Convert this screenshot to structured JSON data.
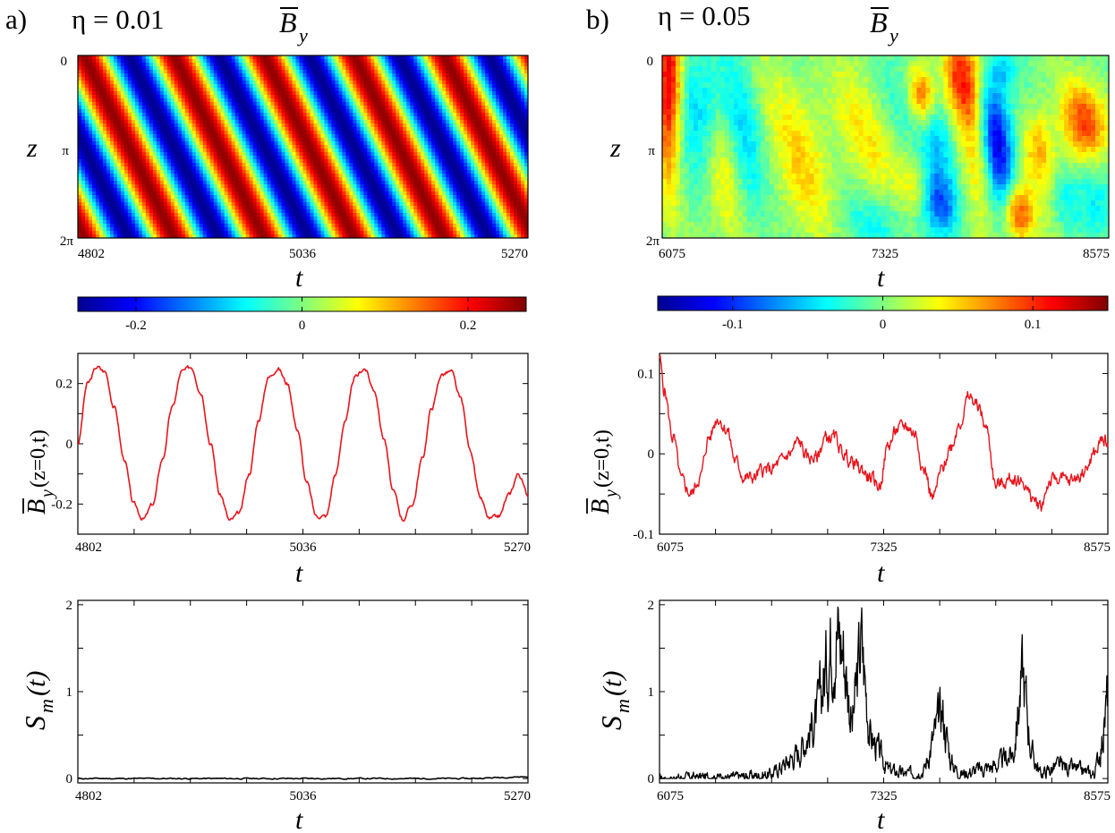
{
  "panels": [
    {
      "id": "a",
      "panel_label": "a)",
      "eta_label": "η = 0.01",
      "heatmap_title": "B̄y",
      "title_base": "B",
      "title_sub": "y",
      "tmin": 4802,
      "tmax": 5270,
      "t_ticks": [
        "4802",
        "5036",
        "5270"
      ],
      "heatmap": {
        "ylabel": "z",
        "z_ticks": [
          "0",
          "π",
          "2π"
        ],
        "xlabel": "t",
        "colorbar": {
          "vmin": -0.27,
          "vmax": 0.27,
          "ticks": [
            -0.2,
            0,
            0.2
          ],
          "tick_labels": [
            "-0.2",
            "0",
            "0.2"
          ]
        }
      },
      "by_series": {
        "ylabel": "B̄y(z=0,t)",
        "ylabel_base": "B",
        "ylabel_sub": "y",
        "ylabel_rest": "(z=0,t)",
        "xlabel": "t",
        "ylim": [
          -0.3,
          0.3
        ],
        "y_ticks": [
          -0.2,
          0,
          0.2
        ],
        "y_tick_labels": [
          "-0.2",
          "0",
          "0.2"
        ],
        "color": "#e8141c"
      },
      "sm_series": {
        "ylabel": "Sm(t)",
        "ylabel_base": "S",
        "ylabel_sub": "m",
        "ylabel_rest": "(t)",
        "xlabel": "t",
        "ylim": [
          -0.05,
          2.05
        ],
        "y_ticks": [
          0,
          1,
          2
        ],
        "y_tick_labels": [
          "0",
          "1",
          "2"
        ],
        "color": "#000000"
      }
    },
    {
      "id": "b",
      "panel_label": "b)",
      "eta_label": "η = 0.05",
      "heatmap_title": "B̄y",
      "title_base": "B",
      "title_sub": "y",
      "tmin": 6075,
      "tmax": 8575,
      "t_ticks": [
        "6075",
        "7325",
        "8575"
      ],
      "heatmap": {
        "ylabel": "z",
        "z_ticks": [
          "0",
          "π",
          "2π"
        ],
        "xlabel": "t",
        "colorbar": {
          "vmin": -0.15,
          "vmax": 0.15,
          "ticks": [
            -0.1,
            0,
            0.1
          ],
          "tick_labels": [
            "-0.1",
            "0",
            "0.1"
          ]
        }
      },
      "by_series": {
        "ylabel": "B̄y(z=0,t)",
        "ylabel_base": "B",
        "ylabel_sub": "y",
        "ylabel_rest": "(z=0,t)",
        "xlabel": "t",
        "ylim": [
          -0.1,
          0.125
        ],
        "y_ticks": [
          -0.1,
          0,
          0.1
        ],
        "y_tick_labels": [
          "-0.1",
          "0",
          "0.1"
        ],
        "color": "#e8141c"
      },
      "sm_series": {
        "ylabel": "Sm(t)",
        "ylabel_base": "S",
        "ylabel_sub": "m",
        "ylabel_rest": "(t)",
        "xlabel": "t",
        "ylim": [
          -0.05,
          2.05
        ],
        "y_ticks": [
          0,
          1,
          2
        ],
        "y_tick_labels": [
          "0",
          "1",
          "2"
        ],
        "color": "#000000"
      }
    }
  ],
  "chart_data": [
    {
      "type": "heatmap",
      "panel": "a",
      "title": "B̄y",
      "xlabel": "t",
      "ylabel": "z",
      "x_range": [
        4802,
        5270
      ],
      "y_range": [
        "0",
        "2π"
      ],
      "color_range": [
        -0.27,
        0.27
      ],
      "description_values": {
        "amplitude": 0.26,
        "num_periods_in_window": 5,
        "pattern": "diagonal traveling dynamo wave"
      }
    },
    {
      "type": "line",
      "panel": "a",
      "xlabel": "t",
      "ylabel": "B̄y(z=0,t)",
      "x": [
        4802,
        4812,
        4822,
        4830,
        4840,
        4850,
        4860,
        4870,
        4880,
        4890,
        4900,
        4910,
        4920,
        4930,
        4940,
        4950,
        4960,
        4970,
        4980,
        4990,
        5000,
        5010,
        5020,
        5030,
        5040,
        5050,
        5060,
        5070,
        5080,
        5090,
        5100,
        5110,
        5120,
        5130,
        5140,
        5150,
        5160,
        5170,
        5180,
        5190,
        5200,
        5210,
        5220,
        5230,
        5240,
        5250,
        5260,
        5270
      ],
      "y": [
        0.0,
        0.2,
        0.255,
        0.24,
        0.12,
        -0.05,
        -0.2,
        -0.25,
        -0.2,
        -0.05,
        0.12,
        0.24,
        0.255,
        0.17,
        0.0,
        -0.17,
        -0.255,
        -0.23,
        -0.1,
        0.08,
        0.22,
        0.25,
        0.2,
        0.05,
        -0.13,
        -0.24,
        -0.24,
        -0.1,
        0.08,
        0.22,
        0.25,
        0.18,
        0.02,
        -0.16,
        -0.25,
        -0.2,
        -0.05,
        0.12,
        0.23,
        0.24,
        0.15,
        -0.02,
        -0.18,
        -0.25,
        -0.24,
        -0.17,
        -0.1,
        -0.17
      ],
      "ylim": [
        -0.3,
        0.3
      ]
    },
    {
      "type": "line",
      "panel": "a",
      "xlabel": "t",
      "ylabel": "Sm(t)",
      "x": [
        4802,
        4900,
        5000,
        5100,
        5200,
        5270
      ],
      "y": [
        0.0,
        0.0,
        0.0,
        0.0,
        0.0,
        0.02
      ],
      "ylim": [
        -0.05,
        2.05
      ]
    },
    {
      "type": "heatmap",
      "panel": "b",
      "title": "B̄y",
      "xlabel": "t",
      "ylabel": "z",
      "x_range": [
        6075,
        8575
      ],
      "y_range": [
        "0",
        "2π"
      ],
      "color_range": [
        -0.15,
        0.15
      ],
      "description_values": {
        "pattern": "irregular intermittent traveling waves"
      }
    },
    {
      "type": "line",
      "panel": "b",
      "xlabel": "t",
      "ylabel": "B̄y(z=0,t)",
      "x": [
        6075,
        6100,
        6150,
        6200,
        6250,
        6300,
        6350,
        6400,
        6450,
        6500,
        6550,
        6600,
        6650,
        6700,
        6750,
        6800,
        6850,
        6900,
        6950,
        7000,
        7050,
        7100,
        7150,
        7200,
        7250,
        7300,
        7350,
        7400,
        7450,
        7500,
        7550,
        7600,
        7650,
        7700,
        7750,
        7800,
        7850,
        7900,
        7950,
        8000,
        8050,
        8100,
        8150,
        8200,
        8250,
        8300,
        8350,
        8400,
        8450,
        8500,
        8550,
        8575
      ],
      "y": [
        0.12,
        0.08,
        0.02,
        -0.035,
        -0.05,
        -0.03,
        0.02,
        0.045,
        0.03,
        -0.01,
        -0.03,
        -0.03,
        -0.02,
        -0.02,
        -0.01,
        0.0,
        0.015,
        -0.005,
        -0.005,
        0.02,
        0.02,
        0.0,
        -0.01,
        -0.02,
        -0.03,
        -0.04,
        0.01,
        0.03,
        0.035,
        0.025,
        -0.02,
        -0.055,
        -0.02,
        0.01,
        0.04,
        0.07,
        0.06,
        0.03,
        -0.04,
        -0.035,
        -0.03,
        -0.035,
        -0.055,
        -0.065,
        -0.035,
        -0.03,
        -0.035,
        -0.03,
        -0.02,
        0.0,
        0.02,
        0.012
      ],
      "ylim": [
        -0.1,
        0.125
      ]
    },
    {
      "type": "line",
      "panel": "b",
      "xlabel": "t",
      "ylabel": "Sm(t)",
      "x": [
        6075,
        6300,
        6500,
        6700,
        6850,
        6950,
        7050,
        7100,
        7150,
        7200,
        7250,
        7350,
        7450,
        7550,
        7650,
        7700,
        7750,
        7850,
        7950,
        8050,
        8100,
        8150,
        8200,
        8300,
        8400,
        8500,
        8550,
        8575
      ],
      "y": [
        0.0,
        0.02,
        0.02,
        0.05,
        0.3,
        0.7,
        1.8,
        1.5,
        0.6,
        1.6,
        0.5,
        0.1,
        0.05,
        0.1,
        0.8,
        0.2,
        0.05,
        0.1,
        0.15,
        0.3,
        1.25,
        0.3,
        0.05,
        0.15,
        0.1,
        0.05,
        0.5,
        1.0
      ],
      "ylim": [
        -0.05,
        2.05
      ]
    }
  ]
}
